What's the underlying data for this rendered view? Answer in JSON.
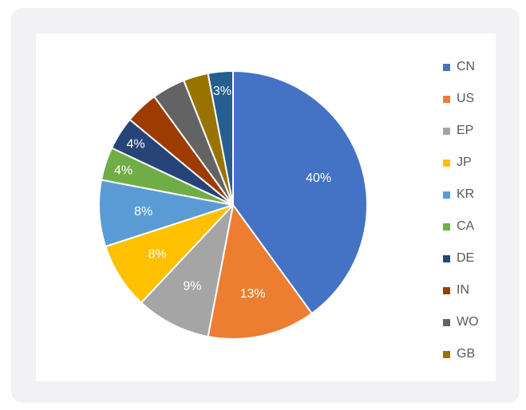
{
  "chart_data": {
    "type": "pie",
    "title": "",
    "legend_position": "right",
    "start_angle_deg": 0,
    "direction": "clockwise",
    "slices": [
      {
        "name": "CN",
        "value": 40,
        "color": "#4472C4",
        "label": "40%"
      },
      {
        "name": "US",
        "value": 13,
        "color": "#ED7D31",
        "label": "13%"
      },
      {
        "name": "EP",
        "value": 9,
        "color": "#A5A5A5",
        "label": "9%"
      },
      {
        "name": "JP",
        "value": 8,
        "color": "#FFC000",
        "label": "8%"
      },
      {
        "name": "KR",
        "value": 8,
        "color": "#5B9BD5",
        "label": "8%"
      },
      {
        "name": "CA",
        "value": 4,
        "color": "#70AD47",
        "label": "4%"
      },
      {
        "name": "DE",
        "value": 4,
        "color": "#264478",
        "label": "4%"
      },
      {
        "name": "IN",
        "value": 4,
        "color": "#9E3B00",
        "label": ""
      },
      {
        "name": "WO",
        "value": 4,
        "color": "#636363",
        "label": ""
      },
      {
        "name": "GB",
        "value": 3,
        "color": "#997300",
        "label": ""
      },
      {
        "name": "",
        "value": 3,
        "color": "#255E91",
        "label": "3%"
      }
    ],
    "legend": [
      {
        "name": "CN",
        "color": "#4472C4"
      },
      {
        "name": "US",
        "color": "#ED7D31"
      },
      {
        "name": "EP",
        "color": "#A5A5A5"
      },
      {
        "name": "JP",
        "color": "#FFC000"
      },
      {
        "name": "KR",
        "color": "#5B9BD5"
      },
      {
        "name": "CA",
        "color": "#70AD47"
      },
      {
        "name": "DE",
        "color": "#264478"
      },
      {
        "name": "IN",
        "color": "#9E3B00"
      },
      {
        "name": "WO",
        "color": "#636363"
      },
      {
        "name": "GB",
        "color": "#997300"
      }
    ]
  }
}
